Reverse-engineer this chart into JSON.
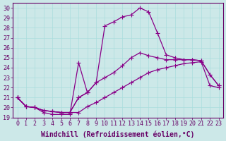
{
  "xlabel": "Windchill (Refroidissement éolien,°C)",
  "bg_color": "#cce8e8",
  "line_color": "#880088",
  "grid_color": "#aadddd",
  "xlim": [
    -0.5,
    23.5
  ],
  "ylim": [
    19,
    30.5
  ],
  "xticks": [
    0,
    1,
    2,
    3,
    4,
    5,
    6,
    7,
    8,
    9,
    10,
    11,
    12,
    13,
    14,
    15,
    16,
    17,
    18,
    19,
    20,
    21,
    22,
    23
  ],
  "yticks": [
    19,
    20,
    21,
    22,
    23,
    24,
    25,
    26,
    27,
    28,
    29,
    30
  ],
  "line1_x": [
    0,
    1,
    2,
    3,
    4,
    5,
    6,
    7,
    8
  ],
  "line1_y": [
    21.0,
    20.1,
    20.0,
    19.5,
    19.3,
    19.3,
    19.3,
    24.5,
    21.5
  ],
  "line2_x": [
    0,
    1,
    2,
    3,
    4,
    5,
    6,
    7,
    8,
    9,
    10,
    11,
    12,
    13,
    14,
    15,
    16,
    17,
    18,
    19,
    20,
    21,
    22,
    23
  ],
  "line2_y": [
    21.0,
    20.1,
    20.0,
    19.7,
    19.6,
    19.5,
    19.5,
    19.5,
    20.1,
    20.5,
    21.0,
    21.5,
    22.0,
    22.5,
    23.0,
    23.5,
    23.8,
    24.0,
    24.2,
    24.4,
    24.5,
    24.6,
    22.2,
    22.0
  ],
  "line3_x": [
    0,
    1,
    2,
    3,
    4,
    5,
    6,
    7,
    8,
    9,
    10,
    11,
    12,
    13,
    14,
    15,
    16,
    17,
    18,
    19,
    20,
    21,
    22,
    23
  ],
  "line3_y": [
    21.0,
    20.1,
    20.0,
    19.7,
    19.6,
    19.5,
    19.5,
    21.0,
    21.5,
    22.5,
    23.0,
    23.5,
    24.2,
    25.0,
    25.5,
    25.2,
    25.0,
    24.8,
    24.8,
    24.8,
    24.8,
    24.7,
    23.3,
    22.2
  ],
  "line4_x": [
    0,
    1,
    2,
    3,
    4,
    5,
    6,
    7,
    8,
    9,
    10,
    11,
    12,
    13,
    14,
    15,
    16,
    17,
    18,
    19,
    20,
    21,
    22,
    23
  ],
  "line4_y": [
    21.0,
    20.1,
    20.0,
    19.7,
    19.6,
    19.5,
    19.5,
    21.0,
    21.5,
    22.5,
    28.2,
    28.6,
    29.1,
    29.3,
    30.0,
    29.6,
    27.5,
    25.3,
    25.0,
    24.8,
    24.8,
    24.7,
    23.3,
    22.2
  ],
  "marker": "+",
  "markersize": 4,
  "linewidth": 0.9,
  "xlabel_fontsize": 7,
  "tick_fontsize": 6,
  "label_color": "#660066"
}
